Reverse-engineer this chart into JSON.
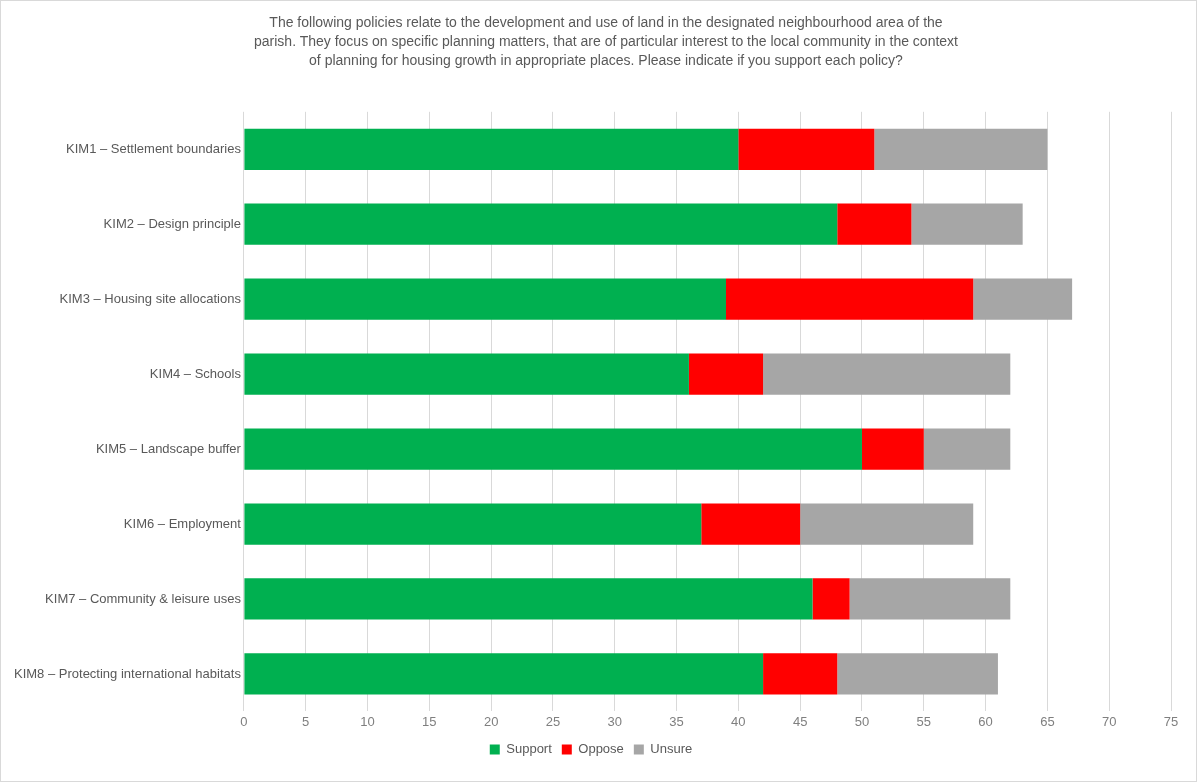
{
  "chart_data": {
    "type": "bar",
    "orientation": "horizontal",
    "stacked": true,
    "title": "The following policies relate to the development and use of land in the designated neighbourhood area of the parish. They focus on specific planning matters, that are of particular interest to the local community in the context of planning for housing growth in appropriate places. Please indicate if you support each policy?",
    "categories": [
      "KIM1 – Settlement boundaries",
      "KIM2 – Design principle",
      "KIM3 – Housing site allocations",
      "KIM4 – Schools",
      "KIM5 – Landscape buffer",
      "KIM6 – Employment",
      "KIM7 – Community & leisure uses",
      "KIM8 – Protecting international habitats"
    ],
    "series": [
      {
        "name": "Support",
        "color": "#00b050",
        "values": [
          40,
          48,
          39,
          36,
          50,
          37,
          46,
          42
        ]
      },
      {
        "name": "Oppose",
        "color": "#ff0000",
        "values": [
          11,
          6,
          20,
          6,
          5,
          8,
          3,
          6
        ]
      },
      {
        "name": "Unsure",
        "color": "#a6a6a6",
        "values": [
          14,
          9,
          8,
          20,
          7,
          14,
          13,
          13
        ]
      }
    ],
    "xlim": [
      0,
      75
    ],
    "xticks": [
      0,
      5,
      10,
      15,
      20,
      25,
      30,
      35,
      40,
      45,
      50,
      55,
      60,
      65,
      70,
      75
    ],
    "grid": "x",
    "legend": "bottom"
  }
}
